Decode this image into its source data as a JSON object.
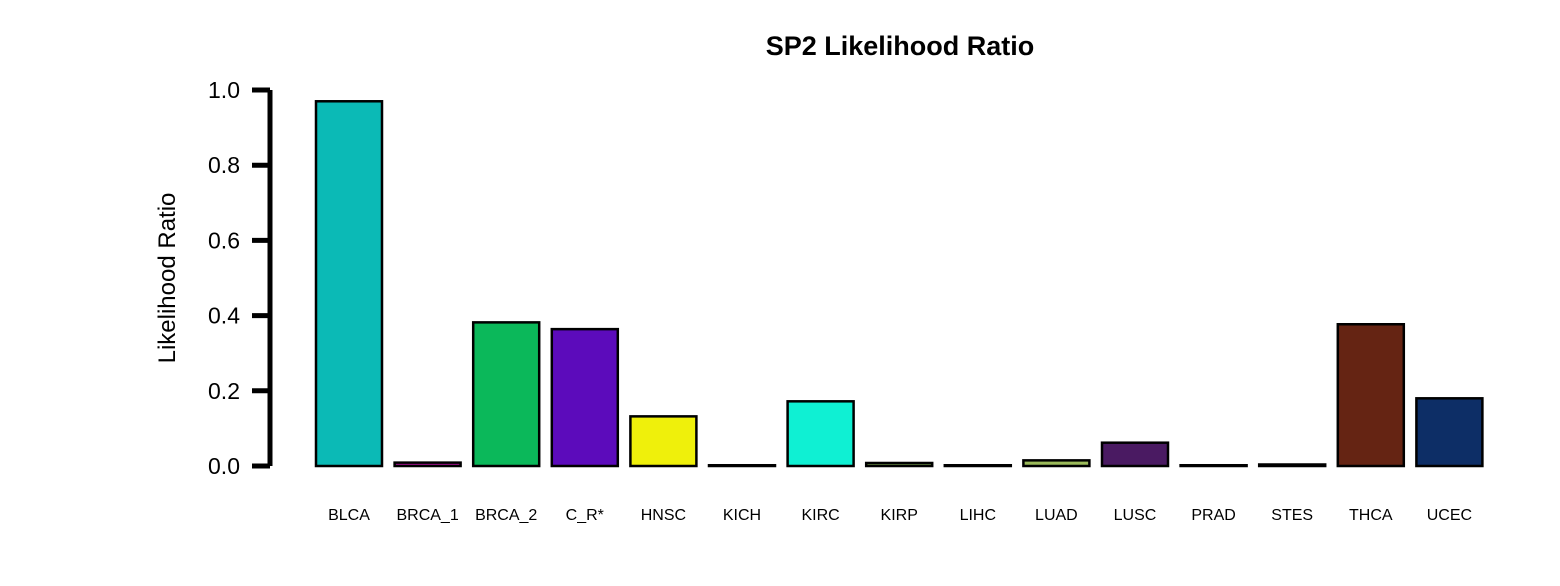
{
  "chart_data": {
    "type": "bar",
    "title": "SP2 Likelihood Ratio",
    "xlabel": "",
    "ylabel": "Likelihood Ratio",
    "ylim": [
      0,
      1.0
    ],
    "yticks": [
      "0.0",
      "0.2",
      "0.4",
      "0.6",
      "0.8",
      "1.0"
    ],
    "grid": false,
    "legend": "none",
    "categories": [
      "BLCA",
      "BRCA_1",
      "BRCA_2",
      "C_R*",
      "HNSC",
      "KICH",
      "KIRC",
      "KIRP",
      "LIHC",
      "LUAD",
      "LUSC",
      "PRAD",
      "STES",
      "THCA",
      "UCEC"
    ],
    "values": [
      0.97,
      0.009,
      0.382,
      0.364,
      0.132,
      0.002,
      0.172,
      0.008,
      0.002,
      0.015,
      0.062,
      0.002,
      0.004,
      0.377,
      0.18
    ],
    "colors": [
      "#0bbab6",
      "#b0139a",
      "#0bb85a",
      "#5c0bbb",
      "#eff00b",
      "#8b0b5a",
      "#0ff0d3",
      "#8bba5a",
      "#0b0b0b",
      "#9bba5a",
      "#4a1a62",
      "#0b1a3a",
      "#5a0b0b",
      "#652413",
      "#0d2e66"
    ]
  }
}
